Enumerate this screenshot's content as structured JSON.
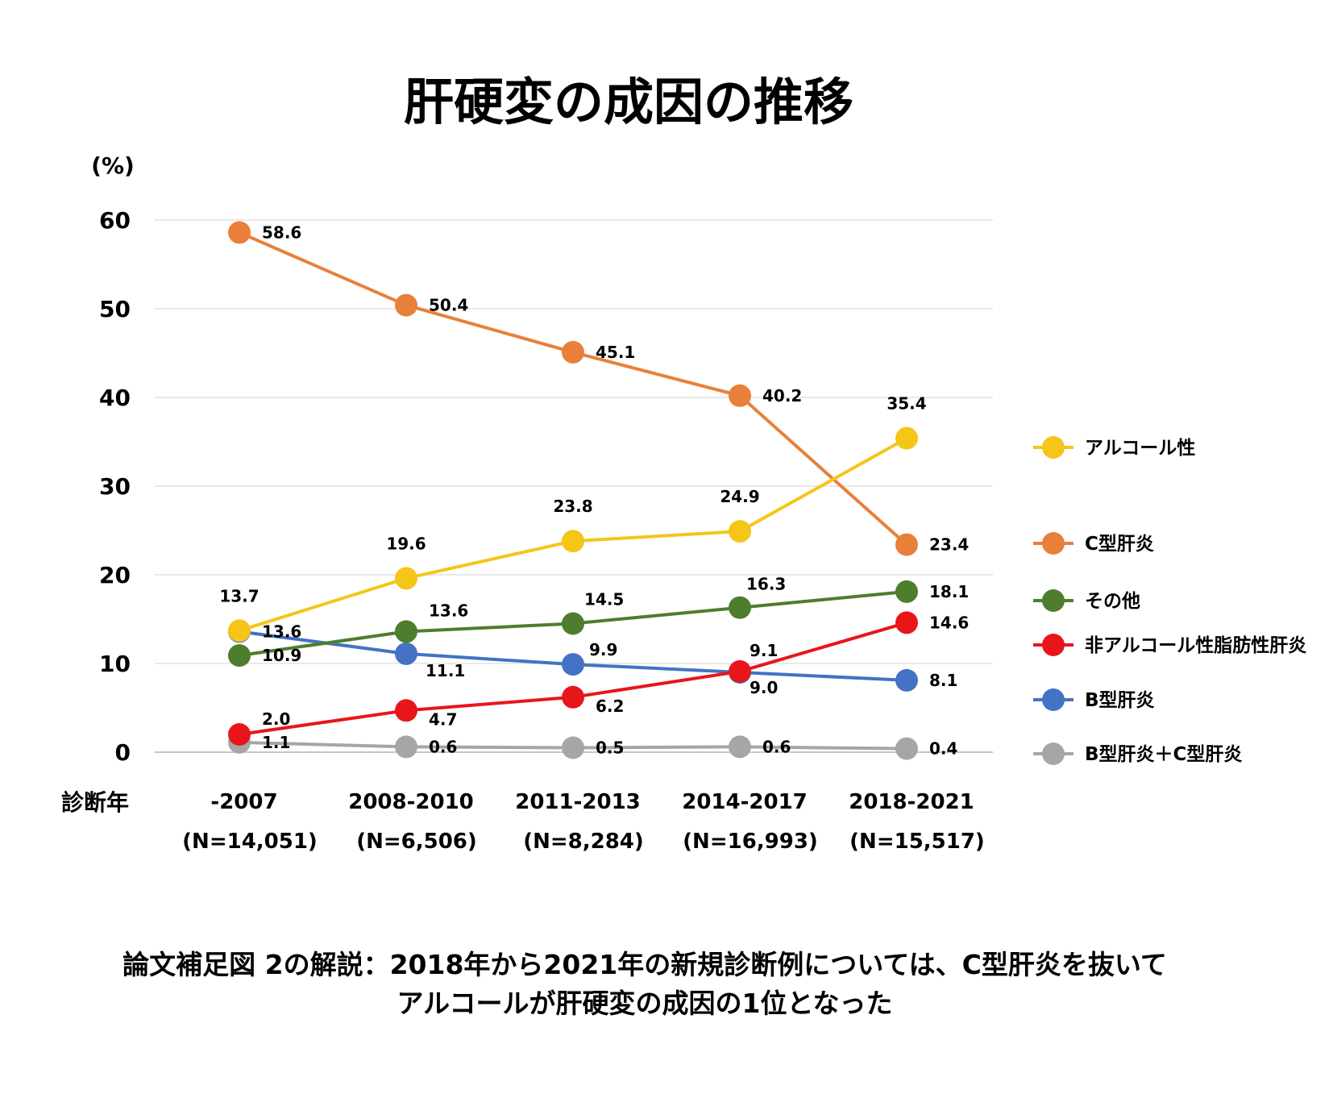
{
  "chart_data": {
    "type": "line",
    "title": "肝硬変の成因の推移",
    "ylabel": "(%)",
    "xlabel": "診断年",
    "ylim": [
      0,
      60
    ],
    "yticks": [
      0,
      10,
      20,
      30,
      40,
      50,
      60
    ],
    "grid": true,
    "legend_position": "right",
    "categories": [
      "-2007",
      "2008-2010",
      "2011-2013",
      "2014-2017",
      "2018-2021"
    ],
    "category_sublabels": [
      "(N=14,051)",
      "(N=6,506)",
      "(N=8,284)",
      "(N=16,993)",
      "(N=15,517)"
    ],
    "series": [
      {
        "name": "アルコール性",
        "color": "#F5C518",
        "values": [
          13.7,
          19.6,
          23.8,
          24.9,
          35.4
        ]
      },
      {
        "name": "C型肝炎",
        "color": "#E8803A",
        "values": [
          58.6,
          50.4,
          45.1,
          40.2,
          23.4
        ]
      },
      {
        "name": "その他",
        "color": "#4E7D2E",
        "values": [
          10.9,
          13.6,
          14.5,
          16.3,
          18.1
        ]
      },
      {
        "name": "非アルコール性脂肪性肝炎",
        "color": "#E8161B",
        "values": [
          2.0,
          4.7,
          6.2,
          9.1,
          14.6
        ]
      },
      {
        "name": "B型肝炎",
        "color": "#4472C4",
        "values": [
          13.6,
          11.1,
          9.9,
          9.0,
          8.1
        ]
      },
      {
        "name": "B型肝炎＋C型肝炎",
        "color": "#A6A6A6",
        "values": [
          1.1,
          0.6,
          0.5,
          0.6,
          0.4
        ]
      }
    ],
    "caption": [
      "論文補足図 2の解説：2018年から2021年の新規診断例については、C型肝炎を抜いて",
      "アルコールが肝硬変の成因の1位となった"
    ]
  }
}
